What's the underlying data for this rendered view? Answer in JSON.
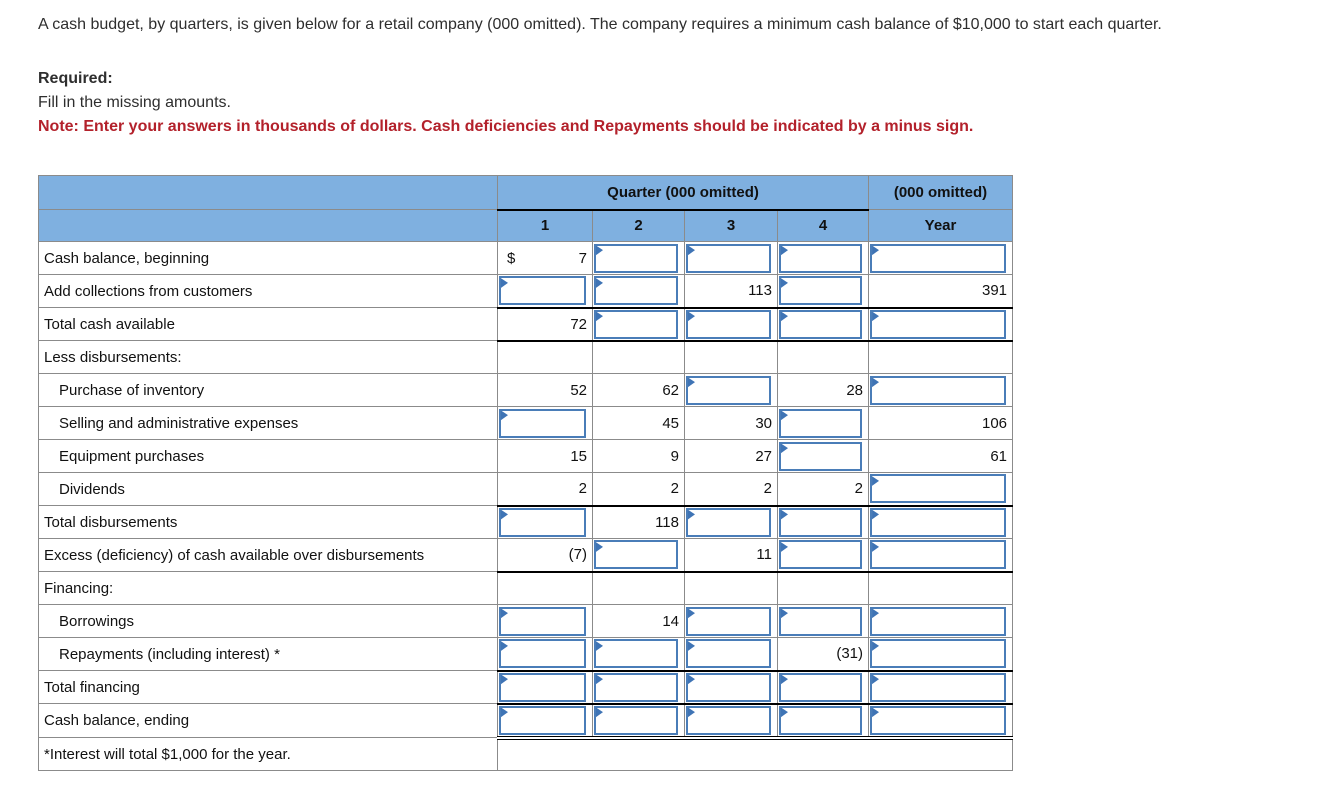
{
  "intro": {
    "paragraph": "A cash budget, by quarters, is given below for a retail company (000 omitted). The company requires a minimum cash balance of $10,000 to start each quarter.",
    "required_label": "Required:",
    "required_text": "Fill in the missing amounts.",
    "note": "Note: Enter your answers in thousands of dollars. Cash deficiencies and Repayments should be indicated by a minus sign."
  },
  "table": {
    "header": {
      "quarter_group": "Quarter (000 omitted)",
      "year_group": "(000 omitted)",
      "columns": [
        "1",
        "2",
        "3",
        "4",
        "Year"
      ]
    },
    "rows": [
      {
        "label": "Cash balance, beginning",
        "indent": false,
        "underline": "none",
        "cells": [
          {
            "t": "static",
            "p": "$",
            "v": "7"
          },
          {
            "t": "input"
          },
          {
            "t": "input"
          },
          {
            "t": "input"
          },
          {
            "t": "input"
          }
        ]
      },
      {
        "label": "Add collections from customers",
        "indent": false,
        "underline": "single",
        "cells": [
          {
            "t": "input"
          },
          {
            "t": "input"
          },
          {
            "t": "static",
            "v": "113"
          },
          {
            "t": "input"
          },
          {
            "t": "static",
            "v": "391"
          }
        ]
      },
      {
        "label": "Total cash available",
        "indent": false,
        "underline": "single",
        "cells": [
          {
            "t": "static",
            "v": "72"
          },
          {
            "t": "input"
          },
          {
            "t": "input"
          },
          {
            "t": "input"
          },
          {
            "t": "input"
          }
        ]
      },
      {
        "label": "Less disbursements:",
        "indent": false,
        "underline": "none",
        "cells": [
          {
            "t": "plain"
          },
          {
            "t": "plain"
          },
          {
            "t": "plain"
          },
          {
            "t": "plain"
          },
          {
            "t": "plain"
          }
        ]
      },
      {
        "label": "Purchase of inventory",
        "indent": true,
        "underline": "none",
        "cells": [
          {
            "t": "static",
            "v": "52"
          },
          {
            "t": "static",
            "v": "62"
          },
          {
            "t": "input"
          },
          {
            "t": "static",
            "v": "28"
          },
          {
            "t": "input"
          }
        ]
      },
      {
        "label": "Selling and administrative expenses",
        "indent": true,
        "underline": "none",
        "cells": [
          {
            "t": "input"
          },
          {
            "t": "static",
            "v": "45"
          },
          {
            "t": "static",
            "v": "30"
          },
          {
            "t": "input"
          },
          {
            "t": "static",
            "v": "106"
          }
        ]
      },
      {
        "label": "Equipment purchases",
        "indent": true,
        "underline": "none",
        "cells": [
          {
            "t": "static",
            "v": "15"
          },
          {
            "t": "static",
            "v": "9"
          },
          {
            "t": "static",
            "v": "27"
          },
          {
            "t": "input"
          },
          {
            "t": "static",
            "v": "61"
          }
        ]
      },
      {
        "label": "Dividends",
        "indent": true,
        "underline": "single",
        "cells": [
          {
            "t": "static",
            "v": "2"
          },
          {
            "t": "static",
            "v": "2"
          },
          {
            "t": "static",
            "v": "2"
          },
          {
            "t": "static",
            "v": "2"
          },
          {
            "t": "input"
          }
        ]
      },
      {
        "label": "Total disbursements",
        "indent": false,
        "underline": "none",
        "cells": [
          {
            "t": "input"
          },
          {
            "t": "static",
            "v": "118"
          },
          {
            "t": "input"
          },
          {
            "t": "input"
          },
          {
            "t": "input"
          }
        ]
      },
      {
        "label": "Excess (deficiency) of cash available over disbursements",
        "indent": false,
        "underline": "single",
        "cells": [
          {
            "t": "static",
            "v": "(7)"
          },
          {
            "t": "input"
          },
          {
            "t": "static",
            "v": "11"
          },
          {
            "t": "input"
          },
          {
            "t": "input"
          }
        ]
      },
      {
        "label": "Financing:",
        "indent": false,
        "underline": "none",
        "cells": [
          {
            "t": "plain"
          },
          {
            "t": "plain"
          },
          {
            "t": "plain"
          },
          {
            "t": "plain"
          },
          {
            "t": "plain"
          }
        ]
      },
      {
        "label": "Borrowings",
        "indent": true,
        "underline": "none",
        "cells": [
          {
            "t": "input"
          },
          {
            "t": "static",
            "v": "14"
          },
          {
            "t": "input"
          },
          {
            "t": "input"
          },
          {
            "t": "input"
          }
        ]
      },
      {
        "label": "Repayments (including interest) *",
        "indent": true,
        "underline": "single",
        "cells": [
          {
            "t": "input"
          },
          {
            "t": "input"
          },
          {
            "t": "input"
          },
          {
            "t": "static",
            "v": "(31)"
          },
          {
            "t": "input"
          }
        ]
      },
      {
        "label": "Total financing",
        "indent": false,
        "underline": "single",
        "cells": [
          {
            "t": "input"
          },
          {
            "t": "input"
          },
          {
            "t": "input"
          },
          {
            "t": "input"
          },
          {
            "t": "input"
          }
        ]
      },
      {
        "label": "Cash balance, ending",
        "indent": false,
        "underline": "double",
        "cells": [
          {
            "t": "input"
          },
          {
            "t": "input"
          },
          {
            "t": "input"
          },
          {
            "t": "input"
          },
          {
            "t": "input"
          }
        ]
      },
      {
        "label": "*Interest will total $1,000 for the year.",
        "indent": false,
        "underline": "none",
        "footnote_span": true,
        "cells": []
      }
    ]
  },
  "colors": {
    "header_blue": "#7fb0e0",
    "input_border": "#4a7db8",
    "flag_blue": "#3f74b5",
    "note_red": "#b3212b",
    "grid_gray": "#8b8b8b",
    "line_black": "#000000"
  }
}
